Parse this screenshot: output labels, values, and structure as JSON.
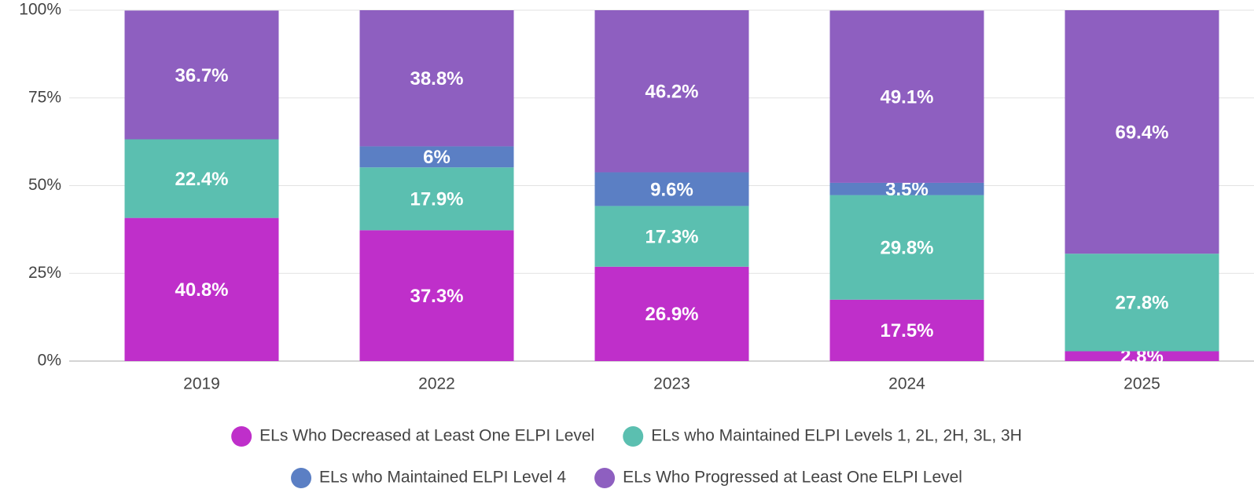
{
  "chart_data": {
    "type": "stacked-bar",
    "categories": [
      "2019",
      "2022",
      "2023",
      "2024",
      "2025"
    ],
    "series": [
      {
        "name": "ELs Who Decreased at Least One ELPI Level",
        "color": "#bf2fca",
        "values": [
          40.8,
          37.3,
          26.9,
          17.5,
          2.8
        ],
        "value_labels": [
          "40.8%",
          "37.3%",
          "26.9%",
          "17.5%",
          "2.8%"
        ]
      },
      {
        "name": "ELs who Maintained ELPI Levels 1, 2L, 2H, 3L, 3H",
        "color": "#5bbfb0",
        "values": [
          22.4,
          17.9,
          17.3,
          29.8,
          27.8
        ],
        "value_labels": [
          "22.4%",
          "17.9%",
          "17.3%",
          "29.8%",
          "27.8%"
        ]
      },
      {
        "name": "ELs who Maintained ELPI Level 4",
        "color": "#5b7fc4",
        "values": [
          null,
          6,
          9.6,
          3.5,
          null
        ],
        "value_labels": [
          null,
          "6%",
          "9.6%",
          "3.5%",
          null
        ]
      },
      {
        "name": "ELs Who Progressed at Least One ELPI Level",
        "color": "#8e5fc0",
        "values": [
          36.7,
          38.8,
          46.2,
          49.1,
          69.4
        ],
        "value_labels": [
          "36.7%",
          "38.8%",
          "46.2%",
          "49.1%",
          "69.4%"
        ]
      }
    ],
    "ylim": [
      0,
      100
    ],
    "yticks": [
      {
        "value": 0,
        "label": "0%"
      },
      {
        "value": 25,
        "label": "25%"
      },
      {
        "value": 50,
        "label": "50%"
      },
      {
        "value": 75,
        "label": "75%"
      },
      {
        "value": 100,
        "label": "100%"
      }
    ],
    "grid": true,
    "legend": "bottom"
  }
}
